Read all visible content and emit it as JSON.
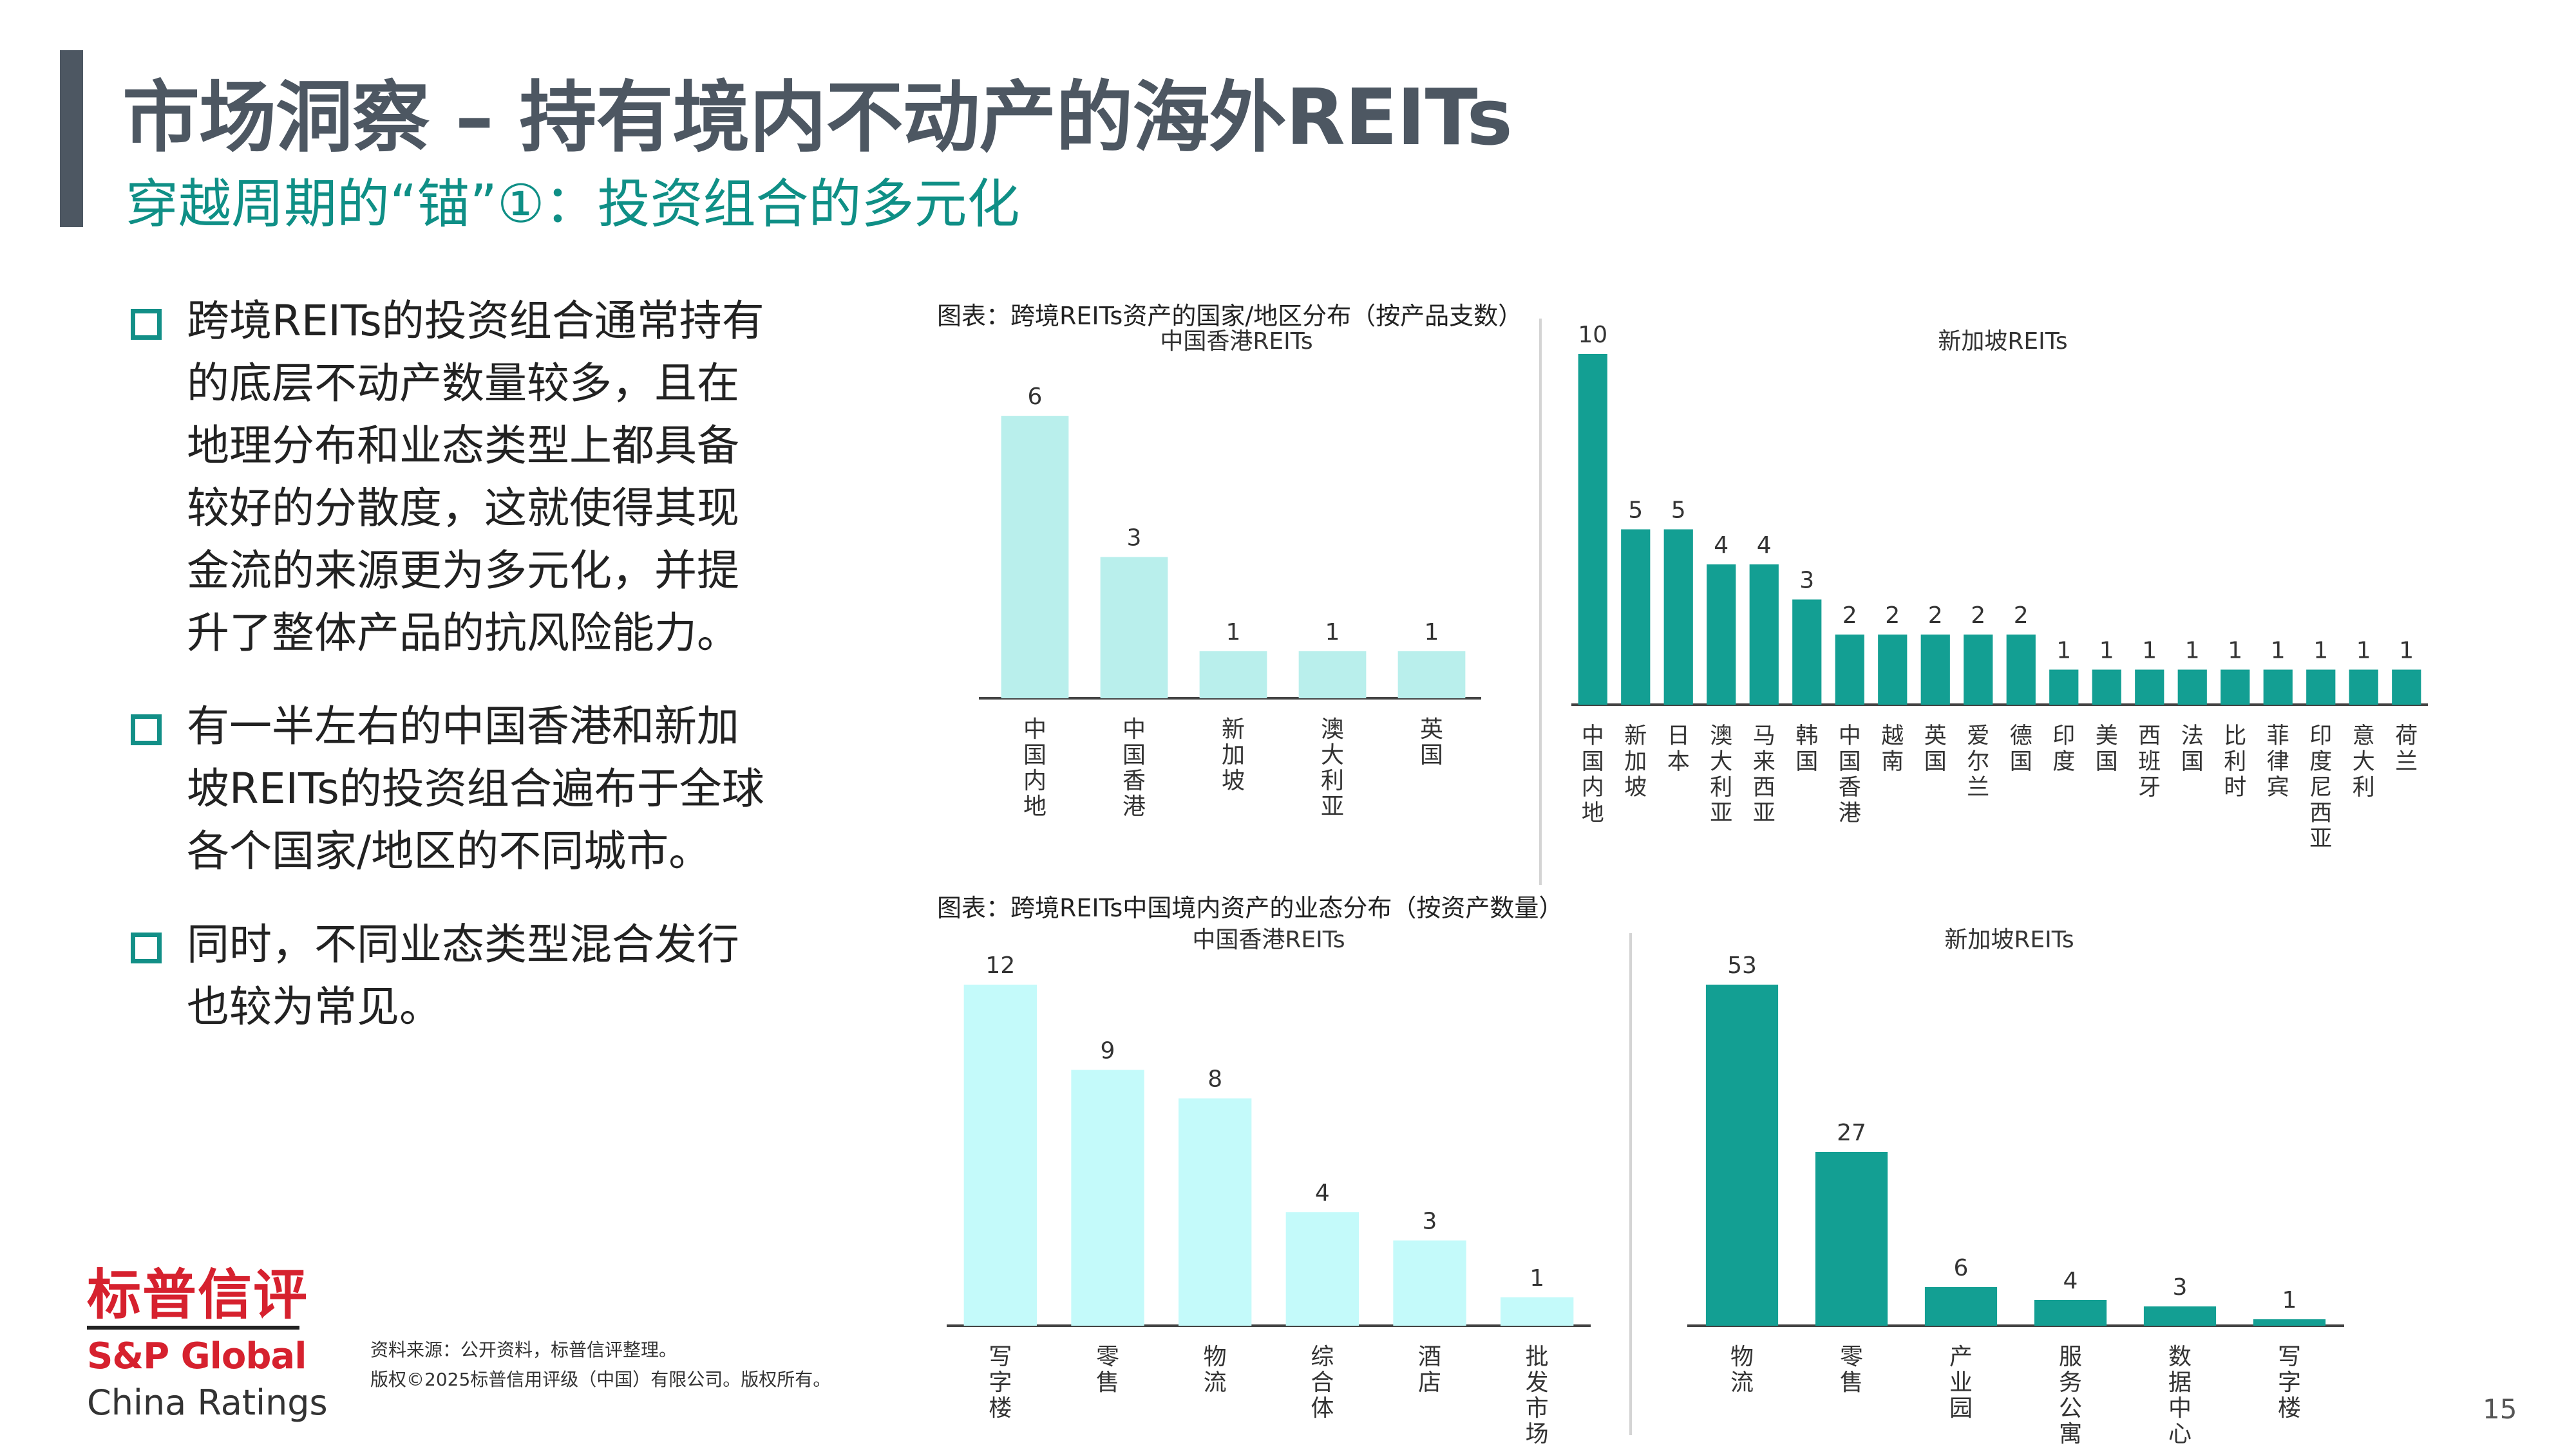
{
  "header": {
    "title": "市场洞察 – 持有境内不动产的海外REITs",
    "subtitle": "穿越周期的“锚”①：投资组合的多元化"
  },
  "bullets": [
    "跨境REITs的投资组合通常持有的底层不动产数量较多，且在地理分布和业态类型上都具备较好的分散度，这就使得其现金流的来源更为多元化，并提升了整体产品的抗风险能力。",
    "有一半左右的中国香港和新加坡REITs的投资组合遍布于全球各个国家/地区的不同城市。",
    "同时，不同业态类型混合发行也较为常见。"
  ],
  "captions": {
    "top": "图表：跨境REITs资产的国家/地区分布（按产品支数）",
    "bottom": "图表：跨境REITs中国境内资产的业态分布（按资产数量）"
  },
  "colors": {
    "light_bar": "#b9efec",
    "light_bar2": "#c4fafa",
    "dark_bar": "#139f93",
    "title": "#4d5762",
    "accent": "#0f8f86",
    "brand_red": "#d6212e"
  },
  "chart_data": [
    {
      "type": "bar",
      "title": "中国香港REITs",
      "categories": [
        "中国内地",
        "中国香港",
        "新加坡",
        "澳大利亚",
        "英国"
      ],
      "values": [
        6,
        3,
        1,
        1,
        1
      ],
      "ylim": [
        0,
        7
      ]
    },
    {
      "type": "bar",
      "title": "新加坡REITs",
      "categories": [
        "中国内地",
        "新加坡",
        "日本",
        "澳大利亚",
        "马来西亚",
        "韩国",
        "中国香港",
        "越南",
        "英国",
        "爱尔兰",
        "德国",
        "印度",
        "美国",
        "西班牙",
        "法国",
        "比利时",
        "菲律宾",
        "印度尼西亚",
        "意大利",
        "荷兰"
      ],
      "values": [
        10,
        5,
        5,
        4,
        4,
        3,
        2,
        2,
        2,
        2,
        2,
        1,
        1,
        1,
        1,
        1,
        1,
        1,
        1,
        1
      ],
      "ylim": [
        0,
        10
      ]
    },
    {
      "type": "bar",
      "title": "中国香港REITs",
      "categories": [
        "写字楼",
        "零售",
        "物流",
        "综合体",
        "酒店",
        "批发市场"
      ],
      "values": [
        12,
        9,
        8,
        4,
        3,
        1
      ],
      "ylim": [
        0,
        12
      ]
    },
    {
      "type": "bar",
      "title": "新加坡REITs",
      "categories": [
        "物流",
        "零售",
        "产业园",
        "服务公寓",
        "数据中心",
        "写字楼"
      ],
      "values": [
        53,
        27,
        6,
        4,
        3,
        1
      ],
      "ylim": [
        0,
        53
      ]
    }
  ],
  "logo": {
    "cn": "标普信评",
    "en": "S&P Global",
    "sub": "China Ratings"
  },
  "source": {
    "line1": "资料来源：公开资料，标普信评整理。",
    "line2": "版权©2025标普信用评级（中国）有限公司。版权所有。"
  },
  "page_number": "15"
}
